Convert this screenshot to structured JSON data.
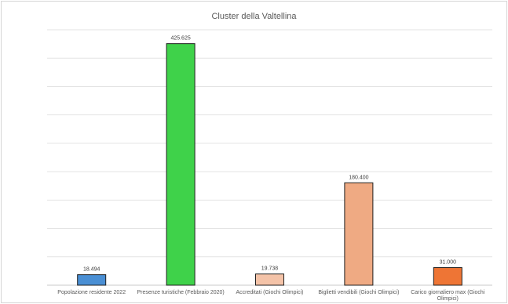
{
  "chart_data": {
    "type": "bar",
    "title": "Cluster della Valtellina",
    "xlabel": "",
    "ylabel": "",
    "ylim": [
      0,
      450000
    ],
    "grid": true,
    "legend": "none",
    "categories": [
      [
        "Popolazione residente 2022"
      ],
      [
        "Presenze turistiche (Febbraio 2020)"
      ],
      [
        "Accreditati (Giochi Olimpici)"
      ],
      [
        "Biglietti vendibili (Giochi Olimpici)"
      ],
      [
        "Carico giornaliero max (Giochi",
        "Olimpici)"
      ]
    ],
    "values": [
      18494,
      425625,
      19738,
      180400,
      31000
    ],
    "data_labels": [
      "18.494",
      "425.625",
      "19.738",
      "180.400",
      "31.000"
    ],
    "colors": [
      "#4a8fd4",
      "#3fd24a",
      "#f4c3a8",
      "#efaa83",
      "#ee7535"
    ]
  }
}
